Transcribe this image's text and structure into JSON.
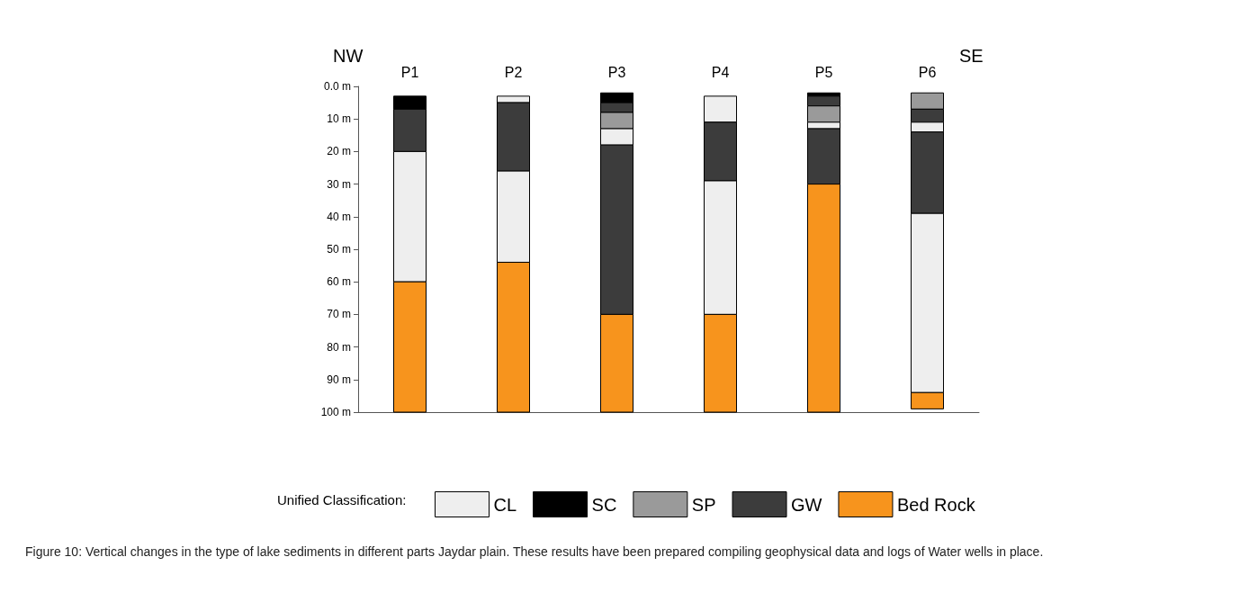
{
  "chart_data": {
    "type": "bar",
    "categories": [
      "P1",
      "P2",
      "P3",
      "P4",
      "P5",
      "P6"
    ],
    "series": [
      {
        "name": "CL",
        "color": "#eeeeee",
        "base": [
          null,
          3,
          null,
          3,
          null,
          null
        ],
        "values": [
          null,
          2,
          null,
          8,
          null,
          null
        ]
      },
      {
        "name": "SC",
        "color": "#000000",
        "base": [
          3,
          null,
          2,
          null,
          2,
          null
        ],
        "values": [
          4,
          null,
          3,
          null,
          1,
          null
        ]
      },
      {
        "name": "SP",
        "color": "#9a9a9a",
        "base": [
          null,
          null,
          null,
          null,
          null,
          2
        ],
        "values": [
          null,
          null,
          null,
          null,
          null,
          5
        ]
      },
      {
        "name": "GW",
        "color": "#3c3c3c",
        "base": [
          7,
          5,
          5,
          11,
          3,
          7
        ],
        "values": [
          13,
          21,
          3,
          18,
          3,
          4
        ]
      },
      {
        "color": "#9a9a9a",
        "base": [
          null,
          null,
          8,
          null,
          6,
          null
        ],
        "values": [
          null,
          null,
          5,
          null,
          5,
          null
        ]
      },
      {
        "color": "#eeeeee",
        "base": [
          20,
          26,
          13,
          29,
          11,
          11
        ],
        "values": [
          40,
          28,
          5,
          41,
          2,
          3
        ]
      },
      {
        "color": "#3c3c3c",
        "base": [
          null,
          null,
          18,
          null,
          13,
          14
        ],
        "values": [
          null,
          null,
          52,
          null,
          17,
          25
        ]
      },
      {
        "color": "#eeeeee",
        "base": [
          null,
          null,
          null,
          null,
          null,
          39
        ],
        "values": [
          null,
          null,
          null,
          null,
          null,
          55
        ]
      },
      {
        "name": "Bed Rock",
        "color": "#f7941d",
        "base": [
          60,
          54,
          70,
          70,
          30,
          94
        ],
        "values": [
          40,
          46,
          30,
          30,
          70,
          5
        ]
      }
    ],
    "ylim": [
      100,
      0
    ],
    "yticks": [
      {
        "value": 0,
        "label": "0.0 m"
      },
      {
        "value": 10,
        "label": "10 m"
      },
      {
        "value": 20,
        "label": "20 m"
      },
      {
        "value": 30,
        "label": "30 m"
      },
      {
        "value": 40,
        "label": "40 m"
      },
      {
        "value": 50,
        "label": "50 m"
      },
      {
        "value": 60,
        "label": "60 m"
      },
      {
        "value": 70,
        "label": "70 m"
      },
      {
        "value": 80,
        "label": "80 m"
      },
      {
        "value": 90,
        "label": "90 m"
      },
      {
        "value": 100,
        "label": "100 m"
      }
    ],
    "legend": "bottom",
    "legend_title": "Unified Classification:",
    "annotations": [
      "NW",
      "SE",
      "Figure 10: Vertical changes in the type of lake sediments in different parts Jaydar plain. These results have been prepared compiling geophysical data and logs of Water wells in place."
    ]
  }
}
